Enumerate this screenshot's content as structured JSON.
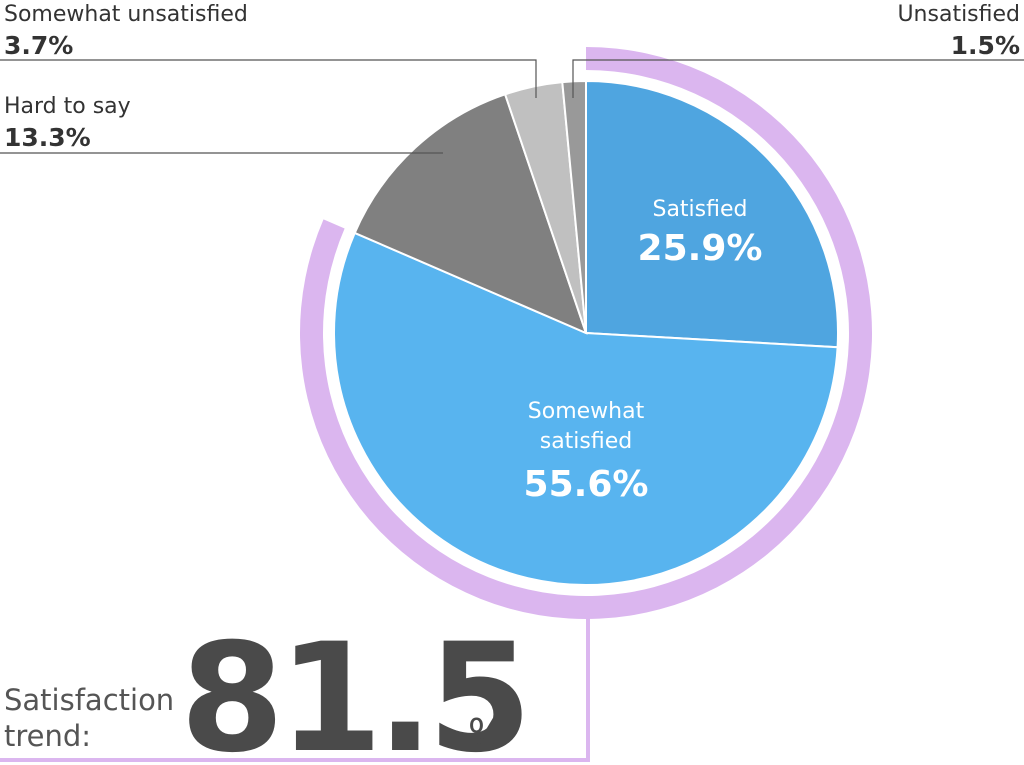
{
  "chart_data": {
    "type": "pie",
    "categories": [
      "Satisfied",
      "Somewhat satisfied",
      "Hard to say",
      "Somewhat unsatisfied",
      "Unsatisfied"
    ],
    "values": [
      25.9,
      55.6,
      13.3,
      3.7,
      1.5
    ],
    "value_labels": [
      "25.9%",
      "55.6%",
      "13.3%",
      "3.7%",
      "1.5%"
    ],
    "inside_labels": {
      "satisfied": {
        "name": "Satisfied",
        "value": "25.9%"
      },
      "somewhat_satisfied": {
        "name_line1": "Somewhat",
        "name_line2": "satisfied",
        "value": "55.6%"
      }
    },
    "outside_labels": {
      "hard_to_say": {
        "name": "Hard to say",
        "value": "13.3%"
      },
      "somewhat_unsatisfied": {
        "name": "Somewhat unsatisfied",
        "value": "3.7%"
      },
      "unsatisfied": {
        "name": "Unsatisfied",
        "value": "1.5%"
      }
    },
    "trend": {
      "label_line1": "Satisfaction",
      "label_line2": "trend:",
      "value": "81.5",
      "unit": "%",
      "covers": [
        "Satisfied",
        "Somewhat satisfied"
      ]
    },
    "colors": {
      "Satisfied": "#4fa5e0",
      "Somewhat satisfied": "#58b4ef",
      "Hard to say": "#808080",
      "Somewhat unsatisfied": "#c0c0c0",
      "Unsatisfied": "#999999",
      "trend_ring": "#dbb6ef"
    }
  }
}
